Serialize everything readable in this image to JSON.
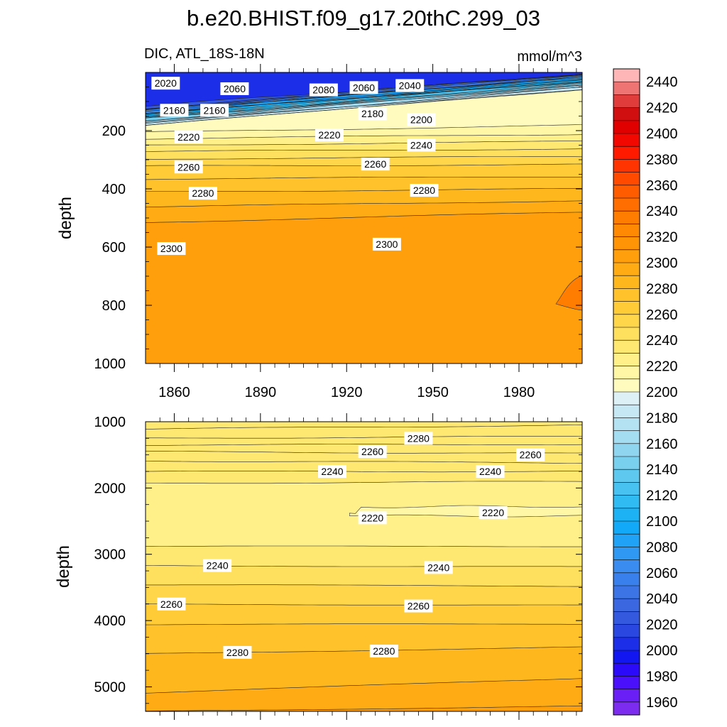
{
  "chart_data": {
    "type": "contour",
    "title": "b.e20.BHIST.f09_g17.20thC.299_03",
    "variable_label": "DIC, ATL_18S-18N",
    "units": "mmol/m^3",
    "colorbar": {
      "levels": [
        1960,
        1970,
        1980,
        1990,
        2000,
        2010,
        2020,
        2030,
        2040,
        2050,
        2060,
        2070,
        2080,
        2090,
        2100,
        2110,
        2120,
        2130,
        2140,
        2150,
        2160,
        2170,
        2180,
        2190,
        2200,
        2210,
        2220,
        2230,
        2240,
        2250,
        2260,
        2270,
        2280,
        2290,
        2300,
        2310,
        2320,
        2330,
        2340,
        2350,
        2360,
        2370,
        2380,
        2390,
        2400,
        2410,
        2420,
        2430,
        2440,
        2450
      ],
      "tick_labels": [
        "1960",
        "1980",
        "2000",
        "2020",
        "2040",
        "2060",
        "2080",
        "2100",
        "2120",
        "2140",
        "2160",
        "2180",
        "2200",
        "2220",
        "2240",
        "2260",
        "2280",
        "2300",
        "2320",
        "2340",
        "2360",
        "2380",
        "2400",
        "2420",
        "2440"
      ],
      "colors": [
        "#7b2cef",
        "#6a1ff6",
        "#4a10fb",
        "#2a0af8",
        "#1216f0",
        "#1c2ee8",
        "#2a48e0",
        "#3458de",
        "#3b68e0",
        "#3c74e6",
        "#3a80ec",
        "#3a8cf0",
        "#2f98f2",
        "#20a2f6",
        "#12aaf8",
        "#1cb2f4",
        "#30bcf2",
        "#48c2f0",
        "#5ec8ee",
        "#78cfee",
        "#8fd5f0",
        "#a4dcf2",
        "#b4e2f2",
        "#c6e8f4",
        "#dcf0f6",
        "#fffbbf",
        "#fff6a6",
        "#fff08a",
        "#ffe872",
        "#ffdf5e",
        "#ffd64a",
        "#ffcc38",
        "#ffc22a",
        "#ffb71e",
        "#ffab14",
        "#ff9f0c",
        "#ff9406",
        "#ff8902",
        "#ff7d00",
        "#ff6e00",
        "#ff5c00",
        "#ff4a00",
        "#ff3400",
        "#ff1a00",
        "#f20800",
        "#e00000",
        "#d01010",
        "#e03c3c",
        "#ee7474",
        "#ffb6b6"
      ]
    },
    "panels": [
      {
        "name": "upper",
        "ylabel": "depth",
        "ylim": [
          0,
          1000
        ],
        "xlim": [
          1850,
          2002
        ],
        "yticks": [
          200,
          400,
          600,
          800,
          1000
        ],
        "xticks": [
          1860,
          1890,
          1920,
          1950,
          1980
        ],
        "contour_labels": [
          {
            "year": 1857,
            "depth": 37,
            "text": "2020"
          },
          {
            "year": 1881,
            "depth": 56,
            "text": "2060"
          },
          {
            "year": 1912,
            "depth": 60,
            "text": "2080"
          },
          {
            "year": 1926,
            "depth": 52,
            "text": "2060"
          },
          {
            "year": 1942,
            "depth": 45,
            "text": "2040"
          },
          {
            "year": 1860,
            "depth": 130,
            "text": "2160"
          },
          {
            "year": 1874,
            "depth": 130,
            "text": "2160"
          },
          {
            "year": 1929,
            "depth": 142,
            "text": "2180"
          },
          {
            "year": 1946,
            "depth": 162,
            "text": "2200"
          },
          {
            "year": 1865,
            "depth": 222,
            "text": "2220"
          },
          {
            "year": 1914,
            "depth": 215,
            "text": "2220"
          },
          {
            "year": 1946,
            "depth": 250,
            "text": "2240"
          },
          {
            "year": 1865,
            "depth": 325,
            "text": "2260"
          },
          {
            "year": 1930,
            "depth": 315,
            "text": "2260"
          },
          {
            "year": 1870,
            "depth": 415,
            "text": "2280"
          },
          {
            "year": 1947,
            "depth": 405,
            "text": "2280"
          },
          {
            "year": 1859,
            "depth": 605,
            "text": "2300"
          },
          {
            "year": 1934,
            "depth": 590,
            "text": "2300"
          }
        ]
      },
      {
        "name": "lower",
        "ylabel": "depth",
        "ylim": [
          1000,
          5370
        ],
        "xlim": [
          1850,
          2002
        ],
        "yticks": [
          1000,
          2000,
          3000,
          4000,
          5000
        ],
        "xticks": [
          1860,
          1890,
          1920,
          1950,
          1980
        ],
        "contour_labels": [
          {
            "year": 1945,
            "depth": 1250,
            "text": "2280"
          },
          {
            "year": 1929,
            "depth": 1450,
            "text": "2260"
          },
          {
            "year": 1984,
            "depth": 1500,
            "text": "2260"
          },
          {
            "year": 1915,
            "depth": 1750,
            "text": "2240"
          },
          {
            "year": 1970,
            "depth": 1750,
            "text": "2240"
          },
          {
            "year": 1929,
            "depth": 2450,
            "text": "2220"
          },
          {
            "year": 1971,
            "depth": 2370,
            "text": "2220"
          },
          {
            "year": 1875,
            "depth": 3170,
            "text": "2240"
          },
          {
            "year": 1952,
            "depth": 3200,
            "text": "2240"
          },
          {
            "year": 1859,
            "depth": 3750,
            "text": "2260"
          },
          {
            "year": 1945,
            "depth": 3780,
            "text": "2260"
          },
          {
            "year": 1882,
            "depth": 4480,
            "text": "2280"
          },
          {
            "year": 1933,
            "depth": 4460,
            "text": "2280"
          }
        ]
      }
    ]
  }
}
